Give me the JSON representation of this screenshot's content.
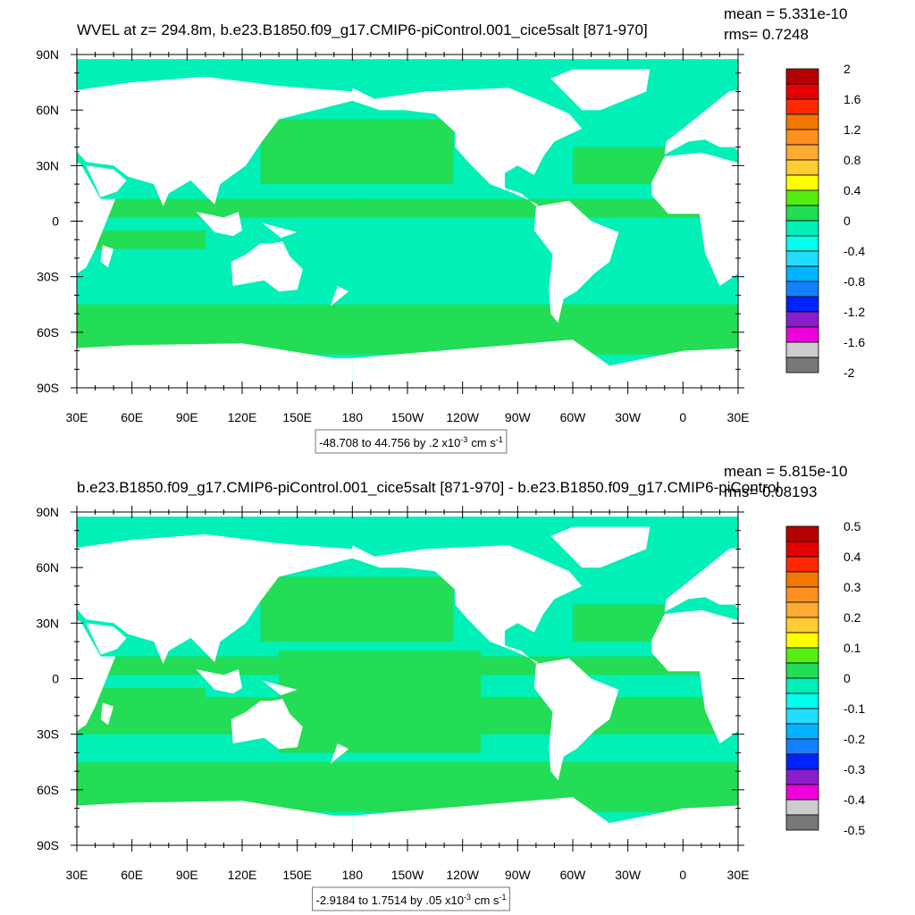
{
  "panels": [
    {
      "title": "WVEL at z= 294.8m, b.e23.B1850.f09_g17.CMIP6-piControl.001_cice5salt [871-970]",
      "mean": "mean = 5.331e-10",
      "rms": "rms= 0.7248",
      "lat_labels": [
        "90N",
        "60N",
        "30N",
        "0",
        "30S",
        "60S",
        "90S"
      ],
      "lon_labels": [
        "30E",
        "60E",
        "90E",
        "120E",
        "150E",
        "180",
        "150W",
        "120W",
        "90W",
        "60W",
        "30W",
        "0",
        "30E"
      ],
      "range_label": {
        "text": "-48.708 to 44.756 by .2 x10",
        "exp": "-3",
        "unit": "cm s",
        "unit_exp": "-1"
      },
      "colorbar": {
        "labels": [
          2,
          1.6,
          1.2,
          0.8,
          0.4,
          0,
          -0.4,
          -0.8,
          -1.2,
          -1.6,
          -2
        ],
        "colors": [
          "#b40000",
          "#e40000",
          "#ff2a00",
          "#f07800",
          "#ff9020",
          "#ffaa33",
          "#ffcc33",
          "#ffff00",
          "#55ee11",
          "#22dd55",
          "#00f0b8",
          "#00ffee",
          "#22ddff",
          "#00b4ff",
          "#1480ff",
          "#0022ff",
          "#8a1ecc",
          "#ee00dd",
          "#cccccc",
          "#777777"
        ]
      }
    },
    {
      "title": "b.e23.B1850.f09_g17.CMIP6-piControl.001_cice5salt [871-970] - b.e23.B1850.f09_g17.CMIP6-piControl",
      "mean": "mean = 5.815e-10",
      "rms": "rms= 0.08193",
      "lat_labels": [
        "90N",
        "60N",
        "30N",
        "0",
        "30S",
        "60S",
        "90S"
      ],
      "lon_labels": [
        "30E",
        "60E",
        "90E",
        "120E",
        "150E",
        "180",
        "150W",
        "120W",
        "90W",
        "60W",
        "30W",
        "0",
        "30E"
      ],
      "range_label": {
        "text": "-2.9184 to 1.7514 by .05 x10",
        "exp": "-3",
        "unit": "cm s",
        "unit_exp": "-1"
      },
      "colorbar": {
        "labels": [
          0.5,
          0.4,
          0.3,
          0.2,
          0.1,
          0,
          -0.1,
          -0.2,
          -0.3,
          -0.4,
          -0.5
        ],
        "colors": [
          "#b40000",
          "#e40000",
          "#ff2a00",
          "#f07800",
          "#ff9020",
          "#ffaa33",
          "#ffcc33",
          "#ffff00",
          "#55ee11",
          "#22dd55",
          "#00f0b8",
          "#00ffee",
          "#22ddff",
          "#00b4ff",
          "#1480ff",
          "#0022ff",
          "#8a1ecc",
          "#ee00dd",
          "#cccccc",
          "#777777"
        ]
      }
    }
  ]
}
